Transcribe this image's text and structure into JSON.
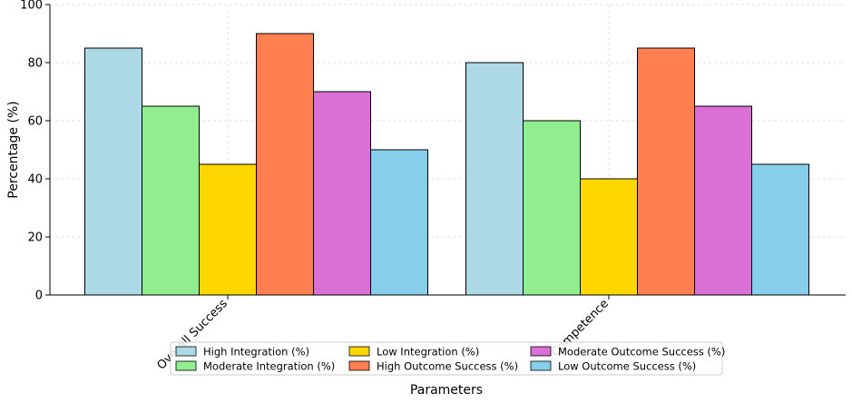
{
  "chart_data": {
    "type": "bar",
    "title": "",
    "xlabel": "Parameters",
    "ylabel": "Percentage (%)",
    "ylim": [
      0,
      100
    ],
    "yticks": [
      0,
      20,
      40,
      60,
      80,
      100
    ],
    "grid": true,
    "legend_position": "bottom-center",
    "categories": [
      "Overall Success",
      "Competence"
    ],
    "series": [
      {
        "name": "High Integration (%)",
        "color": "#add8e6",
        "values": [
          85,
          80
        ]
      },
      {
        "name": "Moderate Integration (%)",
        "color": "#90ee90",
        "values": [
          65,
          60
        ]
      },
      {
        "name": "Low Integration (%)",
        "color": "#ffd700",
        "values": [
          45,
          40
        ]
      },
      {
        "name": "High Outcome Success (%)",
        "color": "#ff7f50",
        "values": [
          90,
          85
        ]
      },
      {
        "name": "Moderate Outcome Success (%)",
        "color": "#da70d6",
        "values": [
          70,
          65
        ]
      },
      {
        "name": "Low Outcome Success (%)",
        "color": "#87ceeb",
        "values": [
          50,
          45
        ]
      }
    ]
  }
}
